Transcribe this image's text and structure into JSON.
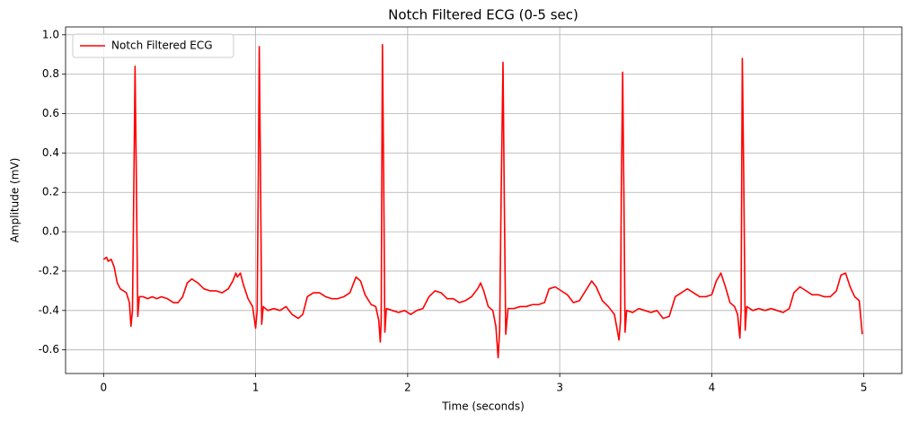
{
  "chart_data": {
    "type": "line",
    "title": "Notch Filtered ECG (0-5 sec)",
    "x_label": "Time (seconds)",
    "y_label": "Amplitude (mV)",
    "xlim": [
      -0.25,
      5.25
    ],
    "ylim": [
      -0.72,
      1.04
    ],
    "xticks": [
      0,
      1,
      2,
      3,
      4,
      5
    ],
    "yticks": [
      -0.6,
      -0.4,
      -0.2,
      {
        "value": 0,
        "label": "0.0"
      },
      0.2,
      0.4,
      0.6,
      0.8,
      {
        "value": 1,
        "label": "1.0"
      }
    ],
    "grid": true,
    "legend": "upper left",
    "x": [
      0,
      0.02,
      0.03,
      0.05,
      0.07,
      0.09,
      0.11,
      0.13,
      0.15,
      0.17,
      0.18,
      0.19,
      0.2,
      0.207,
      0.215,
      0.225,
      0.235,
      0.26,
      0.29,
      0.32,
      0.35,
      0.38,
      0.42,
      0.46,
      0.49,
      0.52,
      0.55,
      0.58,
      0.62,
      0.66,
      0.7,
      0.74,
      0.78,
      0.82,
      0.85,
      0.87,
      0.88,
      0.9,
      0.92,
      0.95,
      0.98,
      1,
      1.01,
      1.018,
      1.024,
      1.032,
      1.04,
      1.05,
      1.08,
      1.12,
      1.16,
      1.2,
      1.24,
      1.28,
      1.31,
      1.34,
      1.38,
      1.42,
      1.46,
      1.5,
      1.54,
      1.58,
      1.62,
      1.66,
      1.69,
      1.72,
      1.76,
      1.79,
      1.81,
      1.82,
      1.826,
      1.83,
      1.834,
      1.842,
      1.85,
      1.86,
      1.9,
      1.94,
      1.98,
      2.02,
      2.06,
      2.1,
      2.14,
      2.18,
      2.22,
      2.26,
      2.3,
      2.34,
      2.38,
      2.42,
      2.46,
      2.48,
      2.5,
      2.53,
      2.56,
      2.58,
      2.595,
      2.605,
      2.615,
      2.627,
      2.635,
      2.645,
      2.66,
      2.7,
      2.74,
      2.78,
      2.82,
      2.86,
      2.9,
      2.93,
      2.97,
      3.01,
      3.05,
      3.09,
      3.13,
      3.17,
      3.21,
      3.24,
      3.28,
      3.32,
      3.36,
      3.39,
      3.4,
      3.405,
      3.414,
      3.422,
      3.43,
      3.44,
      3.48,
      3.52,
      3.56,
      3.6,
      3.64,
      3.68,
      3.72,
      3.76,
      3.8,
      3.84,
      3.88,
      3.92,
      3.96,
      4,
      4.03,
      4.06,
      4.09,
      4.12,
      4.15,
      4.17,
      4.185,
      4.193,
      4.197,
      4.201,
      4.21,
      4.22,
      4.23,
      4.27,
      4.31,
      4.35,
      4.39,
      4.43,
      4.47,
      4.51,
      4.54,
      4.58,
      4.62,
      4.66,
      4.7,
      4.74,
      4.78,
      4.82,
      4.85,
      4.88,
      4.91,
      4.94,
      4.97,
      4.99
    ],
    "series": [
      {
        "name": "Notch Filtered ECG",
        "color": "#ff0000",
        "values": [
          -0.14,
          -0.13,
          -0.15,
          -0.14,
          -0.18,
          -0.26,
          -0.29,
          -0.3,
          -0.31,
          -0.36,
          -0.48,
          -0.4,
          0.3,
          0.84,
          0.3,
          -0.43,
          -0.33,
          -0.33,
          -0.34,
          -0.33,
          -0.34,
          -0.33,
          -0.34,
          -0.36,
          -0.36,
          -0.33,
          -0.26,
          -0.24,
          -0.26,
          -0.29,
          -0.3,
          -0.3,
          -0.31,
          -0.29,
          -0.25,
          -0.21,
          -0.23,
          -0.21,
          -0.27,
          -0.34,
          -0.38,
          -0.49,
          -0.4,
          0.3,
          0.94,
          0.3,
          -0.47,
          -0.38,
          -0.4,
          -0.39,
          -0.4,
          -0.38,
          -0.42,
          -0.44,
          -0.42,
          -0.33,
          -0.31,
          -0.31,
          -0.33,
          -0.34,
          -0.34,
          -0.33,
          -0.31,
          -0.23,
          -0.25,
          -0.32,
          -0.37,
          -0.38,
          -0.45,
          -0.56,
          -0.45,
          0.3,
          0.95,
          0.3,
          -0.51,
          -0.39,
          -0.4,
          -0.41,
          -0.4,
          -0.42,
          -0.4,
          -0.39,
          -0.33,
          -0.3,
          -0.31,
          -0.34,
          -0.34,
          -0.36,
          -0.35,
          -0.33,
          -0.29,
          -0.26,
          -0.3,
          -0.38,
          -0.4,
          -0.48,
          -0.64,
          -0.5,
          0.2,
          0.86,
          0.2,
          -0.52,
          -0.39,
          -0.39,
          -0.38,
          -0.38,
          -0.37,
          -0.37,
          -0.36,
          -0.29,
          -0.28,
          -0.3,
          -0.32,
          -0.36,
          -0.35,
          -0.3,
          -0.25,
          -0.28,
          -0.35,
          -0.38,
          -0.42,
          -0.55,
          -0.45,
          0.2,
          0.81,
          0.2,
          -0.51,
          -0.4,
          -0.41,
          -0.39,
          -0.4,
          -0.41,
          -0.4,
          -0.44,
          -0.43,
          -0.33,
          -0.31,
          -0.29,
          -0.31,
          -0.33,
          -0.33,
          -0.32,
          -0.25,
          -0.21,
          -0.28,
          -0.36,
          -0.38,
          -0.42,
          -0.54,
          -0.4,
          0.3,
          0.88,
          0.3,
          -0.5,
          -0.38,
          -0.4,
          -0.39,
          -0.4,
          -0.39,
          -0.4,
          -0.41,
          -0.39,
          -0.31,
          -0.28,
          -0.3,
          -0.32,
          -0.32,
          -0.33,
          -0.33,
          -0.3,
          -0.22,
          -0.21,
          -0.28,
          -0.33,
          -0.35,
          -0.52
        ]
      }
    ]
  }
}
